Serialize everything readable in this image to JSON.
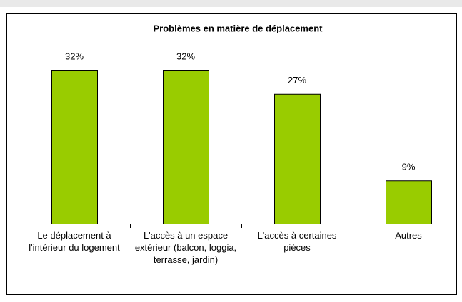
{
  "chart_data": {
    "type": "bar",
    "title": "Problèmes en matière de déplacement",
    "categories": [
      "Le déplacement à l'intérieur du logement",
      "L'accès à un espace extérieur (balcon, loggia, terrasse, jardin)",
      "L'accès à certaines pièces",
      "Autres"
    ],
    "values": [
      32,
      32,
      27,
      9
    ],
    "value_labels": [
      "32%",
      "32%",
      "27%",
      "9%"
    ],
    "color": "#99cc00"
  }
}
